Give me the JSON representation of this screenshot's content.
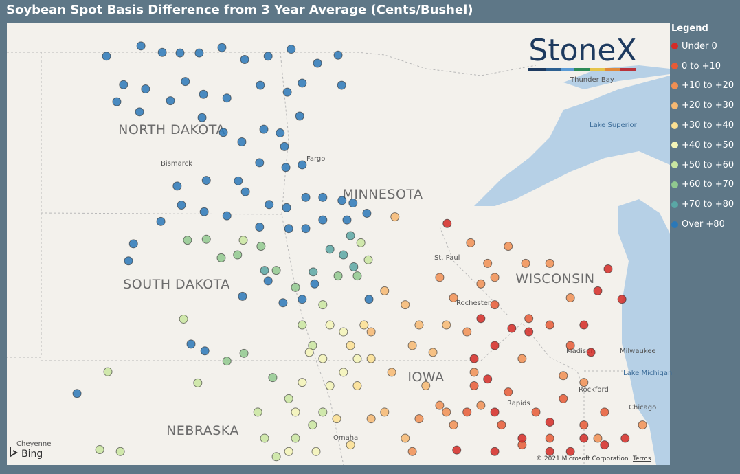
{
  "header": {
    "title": "Soybean Spot Basis Difference from 3 Year Average (Cents/Bushel)"
  },
  "legend": {
    "title": "Legend",
    "items": [
      {
        "label": "Under 0",
        "color": "#d42a26",
        "points": [
          [
            -92.68,
            45.75
          ],
          [
            -88.15,
            44.85
          ],
          [
            -88.44,
            44.41
          ],
          [
            -87.76,
            44.24
          ],
          [
            -88.83,
            43.72
          ],
          [
            -88.63,
            43.16
          ],
          [
            -91.73,
            43.85
          ],
          [
            -91.34,
            43.3
          ],
          [
            -90.86,
            43.65
          ],
          [
            -91.92,
            43.03
          ],
          [
            -91.54,
            42.61
          ],
          [
            -91.34,
            41.92
          ],
          [
            -89.79,
            41.71
          ],
          [
            -89.21,
            41.09
          ],
          [
            -88.25,
            41.23
          ],
          [
            -87.67,
            41.37
          ],
          [
            -90.57,
            41.37
          ],
          [
            -91.34,
            41.09
          ],
          [
            -92.41,
            41.12
          ],
          [
            -89.79,
            41.09
          ],
          [
            -90.38,
            43.58
          ],
          [
            -88.83,
            41.37
          ]
        ]
      },
      {
        "label": "0 to +10",
        "color": "#e65a36",
        "points": [
          [
            -91.34,
            44.13
          ],
          [
            -90.38,
            43.85
          ],
          [
            -89.79,
            43.72
          ],
          [
            -89.21,
            43.3
          ],
          [
            -91.92,
            42.47
          ],
          [
            -90.96,
            42.34
          ],
          [
            -92.12,
            41.92
          ],
          [
            -91.15,
            41.65
          ],
          [
            -90.18,
            41.92
          ],
          [
            -89.41,
            42.2
          ],
          [
            -88.25,
            41.92
          ],
          [
            -89.79,
            41.37
          ],
          [
            -90.57,
            41.23
          ],
          [
            -88.83,
            41.65
          ]
        ]
      },
      {
        "label": "+10 to +20",
        "color": "#f08f53",
        "points": [
          [
            -92.02,
            45.37
          ],
          [
            -91.54,
            44.96
          ],
          [
            -90.96,
            45.3
          ],
          [
            -91.73,
            44.55
          ],
          [
            -92.5,
            44.27
          ],
          [
            -92.89,
            44.68
          ],
          [
            -92.12,
            43.58
          ],
          [
            -91.92,
            42.75
          ],
          [
            -92.89,
            42.06
          ],
          [
            -93.47,
            41.78
          ],
          [
            -92.5,
            41.65
          ],
          [
            -91.73,
            42.06
          ],
          [
            -91.34,
            44.68
          ],
          [
            -90.47,
            44.96
          ],
          [
            -89.79,
            44.96
          ],
          [
            -89.21,
            44.27
          ],
          [
            -90.57,
            43.03
          ],
          [
            -89.41,
            42.68
          ],
          [
            -88.83,
            42.54
          ],
          [
            -93.66,
            41.09
          ],
          [
            -92.7,
            41.92
          ],
          [
            -88.44,
            41.37
          ],
          [
            -87.18,
            41.65
          ]
        ]
      },
      {
        "label": "+20 to +30",
        "color": "#f6b872",
        "points": [
          [
            -94.15,
            45.88
          ],
          [
            -94.44,
            44.41
          ],
          [
            -93.86,
            44.13
          ],
          [
            -93.47,
            43.72
          ],
          [
            -93.08,
            43.16
          ],
          [
            -94.24,
            42.75
          ],
          [
            -94.44,
            41.92
          ],
          [
            -93.86,
            41.37
          ],
          [
            -94.82,
            41.78
          ],
          [
            -92.7,
            43.72
          ],
          [
            -93.28,
            42.47
          ],
          [
            -93.66,
            43.3
          ],
          [
            -94.82,
            43.58
          ]
        ]
      },
      {
        "label": "+30 to +40",
        "color": "#fbe092",
        "points": [
          [
            -95.4,
            43.3
          ],
          [
            -95.02,
            43.72
          ],
          [
            -94.82,
            43.03
          ],
          [
            -95.21,
            42.47
          ],
          [
            -95.79,
            41.78
          ],
          [
            -95.4,
            41.23
          ]
        ]
      },
      {
        "label": "+40 to +50",
        "color": "#f3f4b8",
        "points": [
          [
            -95.98,
            43.72
          ],
          [
            -95.6,
            43.58
          ],
          [
            -96.18,
            43.03
          ],
          [
            -96.76,
            42.54
          ],
          [
            -95.98,
            42.47
          ],
          [
            -95.6,
            42.75
          ],
          [
            -95.21,
            43.03
          ],
          [
            -96.95,
            41.92
          ],
          [
            -97.14,
            41.09
          ],
          [
            -96.37,
            41.09
          ],
          [
            -96.56,
            43.16
          ]
        ]
      },
      {
        "label": "+50 to +60",
        "color": "#c9e6a1",
        "points": [
          [
            -98.42,
            45.42
          ],
          [
            -100.1,
            43.84
          ],
          [
            -102.23,
            42.76
          ],
          [
            -99.7,
            42.53
          ],
          [
            -97.14,
            42.2
          ],
          [
            -94.9,
            45.03
          ],
          [
            -95.11,
            45.37
          ],
          [
            -96.18,
            44.13
          ],
          [
            -96.76,
            43.72
          ],
          [
            -96.47,
            43.3
          ],
          [
            -98.01,
            41.92
          ],
          [
            -97.82,
            41.37
          ],
          [
            -97.49,
            40.98
          ],
          [
            -96.95,
            41.37
          ],
          [
            -96.47,
            41.65
          ],
          [
            -96.18,
            41.92
          ],
          [
            -102.46,
            41.13
          ],
          [
            -101.88,
            41.09
          ]
        ]
      },
      {
        "label": "+60 to +70",
        "color": "#90c98f",
        "points": [
          [
            -99.99,
            45.42
          ],
          [
            -99.46,
            45.44
          ],
          [
            -99.04,
            45.07
          ],
          [
            -98.58,
            45.13
          ],
          [
            -97.92,
            45.3
          ],
          [
            -97.49,
            44.82
          ],
          [
            -96.95,
            44.48
          ],
          [
            -95.75,
            44.71
          ],
          [
            -95.21,
            44.71
          ],
          [
            -98.4,
            43.14
          ],
          [
            -98.88,
            42.98
          ],
          [
            -97.59,
            42.64
          ]
        ]
      },
      {
        "label": "+70 to +80",
        "color": "#5aa7a5",
        "points": [
          [
            -95.98,
            45.24
          ],
          [
            -95.6,
            45.13
          ],
          [
            -95.31,
            44.89
          ],
          [
            -95.4,
            45.51
          ],
          [
            -97.82,
            44.82
          ],
          [
            -96.45,
            44.79
          ]
        ]
      },
      {
        "label": "Over +80",
        "color": "#2a78b8",
        "points": [
          [
            -102.27,
            48.94
          ],
          [
            -101.3,
            49.13
          ],
          [
            -100.7,
            49.01
          ],
          [
            -100.2,
            49.0
          ],
          [
            -99.66,
            49.0
          ],
          [
            -99.02,
            49.1
          ],
          [
            -98.38,
            48.88
          ],
          [
            -97.72,
            48.94
          ],
          [
            -97.07,
            49.07
          ],
          [
            -95.75,
            48.96
          ],
          [
            -101.79,
            48.41
          ],
          [
            -101.17,
            48.33
          ],
          [
            -100.47,
            48.11
          ],
          [
            -100.05,
            48.47
          ],
          [
            -99.54,
            48.23
          ],
          [
            -98.88,
            48.16
          ],
          [
            -97.94,
            48.4
          ],
          [
            -97.18,
            48.27
          ],
          [
            -96.76,
            48.44
          ],
          [
            -95.65,
            48.4
          ],
          [
            -101.98,
            48.09
          ],
          [
            -101.34,
            47.9
          ],
          [
            -99.58,
            47.79
          ],
          [
            -98.98,
            47.51
          ],
          [
            -98.46,
            47.33
          ],
          [
            -97.84,
            47.57
          ],
          [
            -97.38,
            47.5
          ],
          [
            -96.83,
            47.82
          ],
          [
            -96.33,
            48.81
          ],
          [
            -97.26,
            47.24
          ],
          [
            -97.96,
            46.93
          ],
          [
            -97.22,
            46.84
          ],
          [
            -96.76,
            46.89
          ],
          [
            -98.56,
            46.58
          ],
          [
            -99.46,
            46.59
          ],
          [
            -100.28,
            46.48
          ],
          [
            -100.16,
            46.11
          ],
          [
            -99.52,
            45.98
          ],
          [
            -98.88,
            45.9
          ],
          [
            -98.36,
            46.37
          ],
          [
            -97.69,
            46.12
          ],
          [
            -97.2,
            46.06
          ],
          [
            -96.66,
            46.26
          ],
          [
            -96.18,
            46.26
          ],
          [
            -95.64,
            46.2
          ],
          [
            -95.33,
            46.15
          ],
          [
            -94.94,
            45.95
          ],
          [
            -95.5,
            45.82
          ],
          [
            -96.18,
            45.82
          ],
          [
            -96.66,
            45.65
          ],
          [
            -97.14,
            45.65
          ],
          [
            -97.96,
            45.68
          ],
          [
            -100.74,
            45.79
          ],
          [
            -101.51,
            45.35
          ],
          [
            -101.65,
            45.01
          ],
          [
            -99.89,
            43.33
          ],
          [
            -99.5,
            43.19
          ],
          [
            -103.1,
            42.31
          ],
          [
            -98.44,
            44.3
          ],
          [
            -97.72,
            44.61
          ],
          [
            -97.3,
            44.17
          ],
          [
            -96.76,
            44.24
          ],
          [
            -96.41,
            44.55
          ],
          [
            -94.88,
            44.24
          ]
        ]
      }
    ]
  },
  "map": {
    "states": [
      "NORTH DAKOTA",
      "SOUTH DAKOTA",
      "MINNESOTA",
      "WISCONSIN",
      "IOWA",
      "NEBRASKA"
    ],
    "places": [
      "Bismarck",
      "Fargo",
      "St. Paul",
      "Rochester",
      "Madison",
      "Milwaukee",
      "Rockford",
      "Chicago",
      "Omaha",
      "Rapids",
      "Thunder Bay",
      "Cheyenne"
    ],
    "water": [
      "Lake Superior",
      "Lake Michigan"
    ],
    "brand": "StoneX",
    "provider": "Bing",
    "copyright": "© 2021 Microsoft Corporation",
    "terms": "Terms"
  }
}
